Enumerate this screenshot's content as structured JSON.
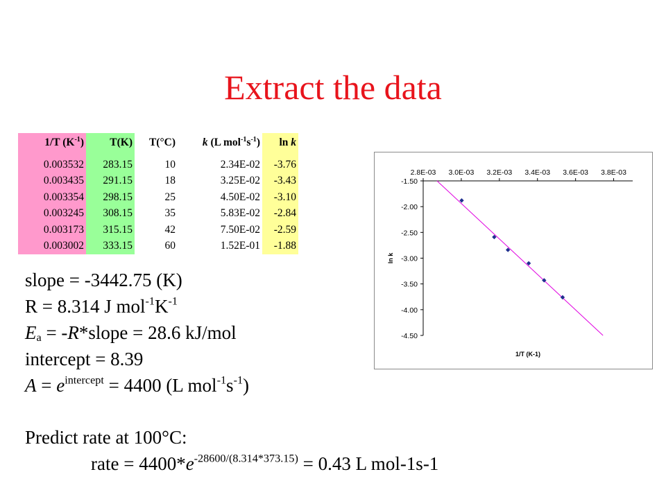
{
  "slide": {
    "title": "Extract the data"
  },
  "table": {
    "headers": {
      "inv_t": "1/T (K",
      "inv_t_sup": "-1",
      "inv_t_close": ")",
      "t_k": "T(K)",
      "t_c": "T(°C)",
      "k_label": "k",
      "k_unit_a": " (L mol",
      "k_unit_sup1": "-1",
      "k_unit_b": "s",
      "k_unit_sup2": "-1",
      "k_unit_close": ")",
      "ln_prefix": "ln ",
      "ln_k": "k"
    },
    "rows": [
      {
        "inv_t": "0.003532",
        "t_k": "283.15",
        "t_c": "10",
        "k": "2.34E-02",
        "ln_k": "-3.76"
      },
      {
        "inv_t": "0.003435",
        "t_k": "291.15",
        "t_c": "18",
        "k": "3.25E-02",
        "ln_k": "-3.43"
      },
      {
        "inv_t": "0.003354",
        "t_k": "298.15",
        "t_c": "25",
        "k": "4.50E-02",
        "ln_k": "-3.10"
      },
      {
        "inv_t": "0.003245",
        "t_k": "308.15",
        "t_c": "35",
        "k": "5.83E-02",
        "ln_k": "-2.84"
      },
      {
        "inv_t": "0.003173",
        "t_k": "315.15",
        "t_c": "42",
        "k": "7.50E-02",
        "ln_k": "-2.59"
      },
      {
        "inv_t": "0.003002",
        "t_k": "333.15",
        "t_c": "60",
        "k": "1.52E-01",
        "ln_k": "-1.88"
      }
    ]
  },
  "results": {
    "slope": "slope = -3442.75 (K)",
    "r_main": "R = 8.314 J mol",
    "r_sup1": "-1",
    "r_k": "K",
    "r_sup2": "-1",
    "ea_e": "E",
    "ea_sub": "a",
    "ea_eq": " = -",
    "ea_r": "R",
    "ea_rest": "*slope = 28.6 kJ/mol",
    "intercept": "intercept = 8.39",
    "a_a": "A",
    "a_eq": " = ",
    "a_e": "e",
    "a_sup": "intercept",
    "a_rest": " = 4400 (L mol",
    "a_sup1": "-1",
    "a_s": "s",
    "a_sup2": "-1",
    "a_close": ")"
  },
  "prediction": {
    "heading": "Predict rate at 100°C:",
    "rate_a": "rate = 4400*",
    "rate_e": "e",
    "rate_sup": "-28600/(8.314*373.15)",
    "rate_b": " = 0.43 L mol-1s-1"
  },
  "colors": {
    "title": "#e8141c",
    "inv_t_col": "#ff99cc",
    "t_k_col": "#99ff99",
    "ln_k_col": "#ffff99",
    "marker": "#1f2f8f",
    "fit_line": "#e000e0"
  },
  "chart_data": {
    "type": "scatter",
    "title": "",
    "xlabel": "1/T (K-1)",
    "ylabel": "ln k",
    "x_axis_position": "top",
    "xlim": [
      0.0028,
      0.0039
    ],
    "ylim": [
      -4.5,
      -1.5
    ],
    "x_ticks": [
      0.0028,
      0.003,
      0.0032,
      0.0034,
      0.0036,
      0.0038
    ],
    "x_tick_labels": [
      "2.8E-03",
      "3.0E-03",
      "3.2E-03",
      "3.4E-03",
      "3.6E-03",
      "3.8E-03"
    ],
    "y_ticks": [
      -1.5,
      -2.0,
      -2.5,
      -3.0,
      -3.5,
      -4.0,
      -4.5
    ],
    "y_tick_labels": [
      "-1.50",
      "-2.00",
      "-2.50",
      "-3.00",
      "-3.50",
      "-4.00",
      "-4.50"
    ],
    "grid": false,
    "legend": "none",
    "points": {
      "x": [
        0.003532,
        0.003435,
        0.003354,
        0.003245,
        0.003173,
        0.003002
      ],
      "y": [
        -3.76,
        -3.43,
        -3.1,
        -2.84,
        -2.59,
        -1.88
      ]
    },
    "trendline": {
      "type": "linear",
      "slope": -3442.75,
      "intercept": 8.39
    }
  }
}
